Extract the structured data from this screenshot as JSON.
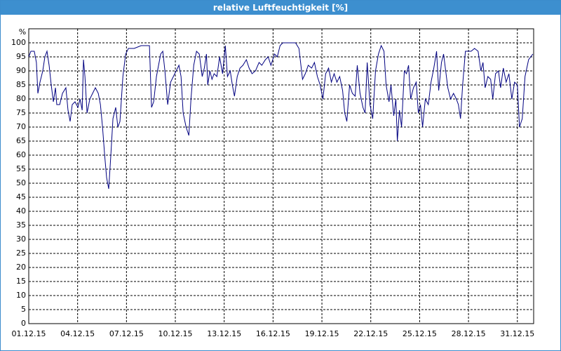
{
  "chart_data": {
    "type": "line",
    "title": "relative Luftfeuchtigkeit [%]",
    "ylabel": "%",
    "x": [
      0,
      0.13,
      0.34,
      0.47,
      0.56,
      0.69,
      0.86,
      0.99,
      1.12,
      1.25,
      1.38,
      1.51,
      1.64,
      1.72,
      1.9,
      2.07,
      2.28,
      2.41,
      2.54,
      2.67,
      2.84,
      3.02,
      3.15,
      3.28,
      3.36,
      3.45,
      3.58,
      3.75,
      3.92,
      4.09,
      4.27,
      4.4,
      4.53,
      4.66,
      4.78,
      4.91,
      5.04,
      5.17,
      5.34,
      5.47,
      5.6,
      5.78,
      5.95,
      6.12,
      6.47,
      6.9,
      7.41,
      7.54,
      7.67,
      7.84,
      8.1,
      8.23,
      8.36,
      8.53,
      8.71,
      8.88,
      9.05,
      9.22,
      9.35,
      9.48,
      9.66,
      9.83,
      9.96,
      10.13,
      10.3,
      10.47,
      10.65,
      10.78,
      10.91,
      10.99,
      11.12,
      11.25,
      11.38,
      11.55,
      11.72,
      11.9,
      12.07,
      12.2,
      12.37,
      12.5,
      12.63,
      12.8,
      12.97,
      13.15,
      13.36,
      13.53,
      13.71,
      13.92,
      14.14,
      14.31,
      14.53,
      14.7,
      14.87,
      15.09,
      15.26,
      15.43,
      15.6,
      15.86,
      16.12,
      16.38,
      16.59,
      16.81,
      16.98,
      17.16,
      17.37,
      17.54,
      17.72,
      17.89,
      18.06,
      18.23,
      18.41,
      18.58,
      18.75,
      18.92,
      19.09,
      19.27,
      19.4,
      19.53,
      19.7,
      19.87,
      20.04,
      20.17,
      20.34,
      20.52,
      20.65,
      20.78,
      20.95,
      21.12,
      21.29,
      21.47,
      21.64,
      21.81,
      21.94,
      22.12,
      22.24,
      22.41,
      22.54,
      22.63,
      22.76,
      22.89,
      23.06,
      23.19,
      23.32,
      23.45,
      23.62,
      23.79,
      23.92,
      24.05,
      24.18,
      24.35,
      24.53,
      24.7,
      24.87,
      25.04,
      25.17,
      25.34,
      25.47,
      25.6,
      25.73,
      25.9,
      26.08,
      26.25,
      26.38,
      26.51,
      26.64,
      26.81,
      27.16,
      27.37,
      27.59,
      27.76,
      27.89,
      28.02,
      28.19,
      28.36,
      28.49,
      28.66,
      28.84,
      28.97,
      29.14,
      29.31,
      29.48,
      29.66,
      29.83,
      30,
      30.13,
      30.3,
      30.47,
      30.69,
      30.95
    ],
    "series": [
      {
        "color": "#000080",
        "values": [
          95,
          97,
          97,
          93,
          82,
          86,
          90,
          95,
          97,
          92,
          85,
          79,
          84,
          78,
          78,
          82,
          84,
          76,
          72,
          78,
          79,
          77,
          80,
          76,
          94,
          88,
          75,
          80,
          82,
          84,
          82,
          78,
          70,
          60,
          52,
          48,
          60,
          73,
          77,
          70,
          72,
          88,
          96,
          98,
          98,
          99,
          99,
          77,
          79,
          88,
          96,
          97,
          90,
          78,
          86,
          88,
          90,
          92,
          88,
          75,
          70,
          67,
          80,
          92,
          97,
          96,
          88,
          91,
          96,
          85,
          90,
          87,
          89,
          88,
          95,
          89,
          99,
          88,
          90,
          85,
          81,
          88,
          91,
          92,
          94,
          91,
          89,
          90,
          93,
          92,
          94,
          95,
          92,
          96,
          95,
          99,
          100,
          100,
          100,
          100,
          98,
          87,
          89,
          92,
          91,
          93,
          88,
          85,
          80,
          89,
          91,
          86,
          89,
          86,
          88,
          83,
          75,
          72,
          85,
          82,
          81,
          92,
          82,
          77,
          75,
          93,
          78,
          73,
          90,
          96,
          99,
          97,
          85,
          79,
          85,
          74,
          80,
          65,
          76,
          70,
          90,
          89,
          92,
          80,
          84,
          86,
          75,
          78,
          70,
          80,
          78,
          86,
          91,
          97,
          83,
          93,
          96,
          90,
          84,
          80,
          82,
          80,
          78,
          73,
          85,
          97,
          97,
          98,
          97,
          90,
          93,
          84,
          88,
          87,
          80,
          89,
          90,
          84,
          91,
          86,
          89,
          80,
          86,
          85,
          70,
          73,
          88,
          94,
          96
        ]
      }
    ],
    "xlim": [
      0,
      31
    ],
    "xticks": [
      {
        "value": 0,
        "label": "01.12.15"
      },
      {
        "value": 3,
        "label": "04.12.15"
      },
      {
        "value": 6,
        "label": "07.12.15"
      },
      {
        "value": 9,
        "label": "10.12.15"
      },
      {
        "value": 12,
        "label": "13.12.15"
      },
      {
        "value": 15,
        "label": "16.12.15"
      },
      {
        "value": 18,
        "label": "19.12.15"
      },
      {
        "value": 21,
        "label": "22.12.15"
      },
      {
        "value": 24,
        "label": "25.12.15"
      },
      {
        "value": 27,
        "label": "28.12.15"
      },
      {
        "value": 30,
        "label": "31.12.15"
      }
    ],
    "ylim": [
      0,
      105
    ],
    "yticks": [
      0,
      5,
      10,
      15,
      20,
      25,
      30,
      35,
      40,
      45,
      50,
      55,
      60,
      65,
      70,
      75,
      80,
      85,
      90,
      95,
      100
    ],
    "grid": true
  }
}
